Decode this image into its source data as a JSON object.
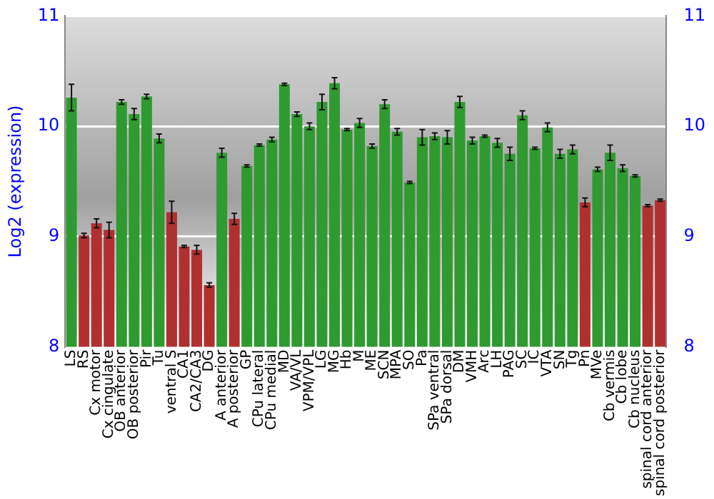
{
  "chart_data": {
    "type": "bar",
    "ylabel": "Log2 (expression)",
    "categories": [
      "LS",
      "RS",
      "Cx motor",
      "Cx cingulate",
      "OB anterior",
      "OB posterior",
      "Pir",
      "Tu",
      "ventral S",
      "CA1",
      "CA2/CA3",
      "DG",
      "A anterior",
      "A posterior",
      "GP",
      "CPu lateral",
      "CPu medial",
      "MD",
      "VA/VL",
      "VPM/VPL",
      "LG",
      "MG",
      "Hb",
      "M",
      "ME",
      "SCN",
      "MPA",
      "SO",
      "Pa",
      "SPa ventral",
      "SPa dorsal",
      "DM",
      "VMH",
      "Arc",
      "LH",
      "PAG",
      "SC",
      "IC",
      "VTA",
      "SN",
      "Tg",
      "Pn",
      "MVe",
      "Cb vermis",
      "Cb lobe",
      "Cb nucleus",
      "spinal cord anterior",
      "spinal cord posterior"
    ],
    "values": [
      10.26,
      9.01,
      9.12,
      9.06,
      10.22,
      10.11,
      10.27,
      9.89,
      9.22,
      8.91,
      8.88,
      8.56,
      9.76,
      9.16,
      9.64,
      9.83,
      9.88,
      10.38,
      10.11,
      10.0,
      10.22,
      10.39,
      9.97,
      10.03,
      9.82,
      10.2,
      9.95,
      9.49,
      9.9,
      9.91,
      9.9,
      10.22,
      9.87,
      9.91,
      9.85,
      9.75,
      10.1,
      9.8,
      9.99,
      9.75,
      9.79,
      9.31,
      9.61,
      9.76,
      9.62,
      9.55,
      9.28,
      9.33
    ],
    "errors": [
      0.12,
      0.02,
      0.04,
      0.07,
      0.02,
      0.05,
      0.02,
      0.04,
      0.1,
      0.01,
      0.04,
      0.02,
      0.04,
      0.05,
      0.01,
      0.01,
      0.02,
      0.01,
      0.02,
      0.03,
      0.07,
      0.05,
      0.01,
      0.04,
      0.02,
      0.04,
      0.03,
      0.01,
      0.07,
      0.03,
      0.06,
      0.05,
      0.03,
      0.01,
      0.04,
      0.06,
      0.04,
      0.01,
      0.04,
      0.04,
      0.04,
      0.04,
      0.02,
      0.07,
      0.03,
      0.01,
      0.01,
      0.01
    ],
    "colors": [
      "#2f9a2f",
      "#b03030",
      "#b03030",
      "#b03030",
      "#2f9a2f",
      "#2f9a2f",
      "#2f9a2f",
      "#2f9a2f",
      "#b03030",
      "#b03030",
      "#b03030",
      "#b03030",
      "#2f9a2f",
      "#b03030",
      "#2f9a2f",
      "#2f9a2f",
      "#2f9a2f",
      "#2f9a2f",
      "#2f9a2f",
      "#2f9a2f",
      "#2f9a2f",
      "#2f9a2f",
      "#2f9a2f",
      "#2f9a2f",
      "#2f9a2f",
      "#2f9a2f",
      "#2f9a2f",
      "#2f9a2f",
      "#2f9a2f",
      "#2f9a2f",
      "#2f9a2f",
      "#2f9a2f",
      "#2f9a2f",
      "#2f9a2f",
      "#2f9a2f",
      "#2f9a2f",
      "#2f9a2f",
      "#2f9a2f",
      "#2f9a2f",
      "#2f9a2f",
      "#2f9a2f",
      "#b03030",
      "#2f9a2f",
      "#2f9a2f",
      "#2f9a2f",
      "#2f9a2f",
      "#b03030",
      "#b03030"
    ],
    "ylim": [
      8,
      11
    ],
    "yticks": [
      8,
      9,
      10,
      11
    ],
    "y2lim": [
      8,
      11
    ],
    "y2ticks": [
      8,
      9,
      10,
      11
    ],
    "grid": "y",
    "legend": false
  }
}
